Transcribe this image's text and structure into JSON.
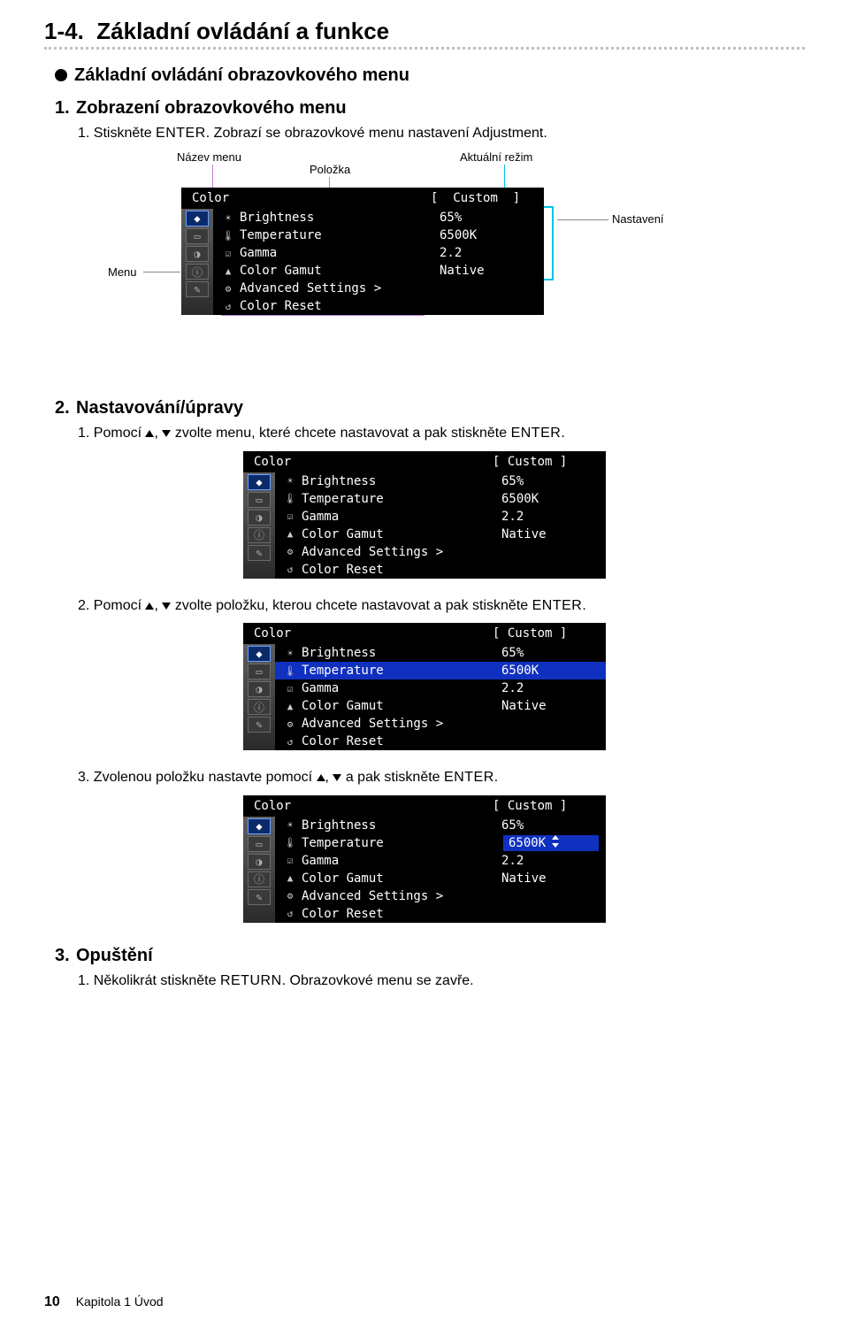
{
  "section": {
    "number": "1-4.",
    "title": "Základní ovládání a funkce"
  },
  "sub": "Základní ovládání obrazovkového menu",
  "step1": {
    "num": "1.",
    "title": "Zobrazení obrazovkového menu",
    "line": "1.  Stiskněte ",
    "enter": "ENTER",
    "line_after": ". Zobrazí se obrazovkové menu nastavení Adjustment."
  },
  "labels": {
    "menu_name": "Název menu",
    "item": "Položka",
    "current_mode": "Aktuální režim",
    "menu": "Menu",
    "settings": "Nastavení"
  },
  "osd": {
    "title": "Color",
    "mode_bracket_l": "[",
    "mode": "Custom",
    "mode_bracket_r": "]",
    "rows": [
      {
        "icon": "☀",
        "label": "Brightness",
        "value": "65%"
      },
      {
        "icon": "🌡",
        "label": "Temperature",
        "value": "6500K"
      },
      {
        "icon": "☑",
        "label": "Gamma",
        "value": "2.2"
      },
      {
        "icon": "▲",
        "label": "Color Gamut",
        "value": "Native"
      },
      {
        "icon": "⚙",
        "label": "Advanced Settings >",
        "value": ""
      },
      {
        "icon": "↺",
        "label": "Color Reset",
        "value": ""
      }
    ]
  },
  "step2": {
    "num": "2.",
    "title": "Nastavování/úpravy",
    "line1a": "1.  Pomocí ",
    "line1b": ", ",
    "line1c": " zvolte menu, které chcete nastavovat a pak stiskněte ",
    "line2a": "2.  Pomocí ",
    "line2c": " zvolte položku, kterou chcete nastavovat a pak stiskněte ",
    "line3a": "3.  Zvolenou položku nastavte pomocí ",
    "line3c": " a pak stiskněte ",
    "enter": "ENTER",
    "period": "."
  },
  "step3": {
    "num": "3.",
    "title": "Opuštění",
    "line": "1.  Několikrát stiskněte ",
    "return": "RETURN",
    "line_after": ". Obrazovkové menu se zavře."
  },
  "footer": {
    "page": "10",
    "chapter": "Kapitola 1 Úvod"
  },
  "colors": {
    "osd_bg": "#000000",
    "osd_fg": "#ffffff",
    "highlight": "#1030c0",
    "anno_magenta": "#c080d0",
    "anno_cyan": "#00c4e6",
    "anno_grey": "#888888"
  }
}
